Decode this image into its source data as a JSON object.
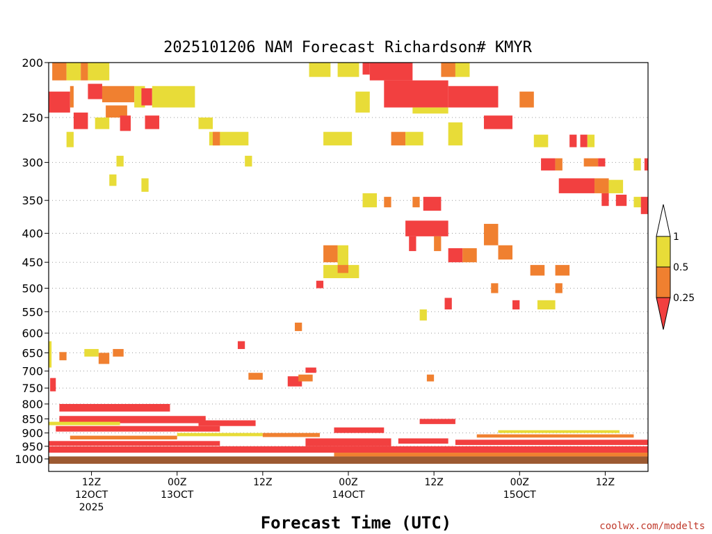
{
  "chart_data": {
    "type": "heatmap",
    "title": "2025101206 NAM Forecast Richardson# KMYR",
    "xlabel": "Forecast Time (UTC)",
    "ylabel": "",
    "credit": "coolwx.com/modelts",
    "y_ticks": [
      "200",
      "250",
      "300",
      "350",
      "400",
      "450",
      "500",
      "550",
      "600",
      "650",
      "700",
      "750",
      "800",
      "850",
      "900",
      "950",
      "1000"
    ],
    "y_values": [
      200,
      250,
      300,
      350,
      400,
      450,
      500,
      550,
      600,
      650,
      700,
      750,
      800,
      850,
      900,
      950,
      1000
    ],
    "ylim": [
      200,
      1020
    ],
    "xlim": [
      0,
      84
    ],
    "x_ticks": [
      {
        "hour": 6,
        "label": "12Z",
        "sub1": "12OCT",
        "sub2": "2025"
      },
      {
        "hour": 18,
        "label": "00Z",
        "sub1": "13OCT",
        "sub2": ""
      },
      {
        "hour": 30,
        "label": "12Z",
        "sub1": "",
        "sub2": ""
      },
      {
        "hour": 42,
        "label": "00Z",
        "sub1": "14OCT",
        "sub2": ""
      },
      {
        "hour": 54,
        "label": "12Z",
        "sub1": "",
        "sub2": ""
      },
      {
        "hour": 66,
        "label": "00Z",
        "sub1": "15OCT",
        "sub2": ""
      },
      {
        "hour": 78,
        "label": "12Z",
        "sub1": "",
        "sub2": ""
      }
    ],
    "legend": {
      "placement": "right",
      "bins": [
        {
          "range": "<0.25",
          "color": "#f24040"
        },
        {
          "range": "0.25-0.5",
          "color": "#f08030"
        },
        {
          "range": "0.5-1",
          "color": "#e8dc38"
        },
        {
          "range": ">1",
          "color": "#ffffff"
        }
      ],
      "labels": [
        "1",
        "0.5",
        "0.25"
      ]
    },
    "categories_color": {
      "low": "#f24040",
      "mid": "#f08030",
      "high": "#e8dc38",
      "ground": "#9c5a32"
    },
    "cells": [
      {
        "t0": 0.5,
        "t1": 2.5,
        "p0": 200,
        "p1": 215,
        "c": "mid"
      },
      {
        "t0": 2.5,
        "t1": 4.5,
        "p0": 200,
        "p1": 215,
        "c": "high"
      },
      {
        "t0": 4.5,
        "t1": 5.5,
        "p0": 200,
        "p1": 215,
        "c": "mid"
      },
      {
        "t0": 5.5,
        "t1": 8.5,
        "p0": 200,
        "p1": 215,
        "c": "high"
      },
      {
        "t0": 0,
        "t1": 3,
        "p0": 225,
        "p1": 245,
        "c": "low"
      },
      {
        "t0": 3,
        "t1": 3.5,
        "p0": 220,
        "p1": 240,
        "c": "mid"
      },
      {
        "t0": 5.5,
        "t1": 7.5,
        "p0": 218,
        "p1": 232,
        "c": "low"
      },
      {
        "t0": 7.5,
        "t1": 12,
        "p0": 220,
        "p1": 235,
        "c": "mid"
      },
      {
        "t0": 12,
        "t1": 13.5,
        "p0": 220,
        "p1": 240,
        "c": "high"
      },
      {
        "t0": 13,
        "t1": 14.5,
        "p0": 222,
        "p1": 238,
        "c": "low"
      },
      {
        "t0": 14.5,
        "t1": 20.5,
        "p0": 220,
        "p1": 240,
        "c": "high"
      },
      {
        "t0": 8,
        "t1": 11,
        "p0": 238,
        "p1": 250,
        "c": "mid"
      },
      {
        "t0": 3.5,
        "t1": 5.5,
        "p0": 245,
        "p1": 262,
        "c": "low"
      },
      {
        "t0": 6.5,
        "t1": 8.5,
        "p0": 250,
        "p1": 262,
        "c": "high"
      },
      {
        "t0": 10,
        "t1": 11.5,
        "p0": 248,
        "p1": 264,
        "c": "low"
      },
      {
        "t0": 13.5,
        "t1": 15.5,
        "p0": 248,
        "p1": 262,
        "c": "low"
      },
      {
        "t0": 21,
        "t1": 23,
        "p0": 250,
        "p1": 262,
        "c": "high"
      },
      {
        "t0": 22.5,
        "t1": 28,
        "p0": 265,
        "p1": 280,
        "c": "high"
      },
      {
        "t0": 23,
        "t1": 24,
        "p0": 265,
        "p1": 280,
        "c": "mid"
      },
      {
        "t0": 2.5,
        "t1": 3.5,
        "p0": 265,
        "p1": 282,
        "c": "high"
      },
      {
        "t0": 9.5,
        "t1": 10.5,
        "p0": 292,
        "p1": 305,
        "c": "high"
      },
      {
        "t0": 27.5,
        "t1": 28.5,
        "p0": 292,
        "p1": 305,
        "c": "high"
      },
      {
        "t0": 8.5,
        "t1": 9.5,
        "p0": 315,
        "p1": 330,
        "c": "high"
      },
      {
        "t0": 13,
        "t1": 14,
        "p0": 320,
        "p1": 338,
        "c": "high"
      },
      {
        "t0": 36.5,
        "t1": 39.5,
        "p0": 200,
        "p1": 212,
        "c": "high"
      },
      {
        "t0": 40.5,
        "t1": 43.5,
        "p0": 200,
        "p1": 212,
        "c": "high"
      },
      {
        "t0": 44,
        "t1": 45,
        "p0": 200,
        "p1": 210,
        "c": "low"
      },
      {
        "t0": 45,
        "t1": 51,
        "p0": 200,
        "p1": 215,
        "c": "low"
      },
      {
        "t0": 47,
        "t1": 56,
        "p0": 215,
        "p1": 240,
        "c": "low"
      },
      {
        "t0": 56,
        "t1": 63,
        "p0": 220,
        "p1": 240,
        "c": "low"
      },
      {
        "t0": 51,
        "t1": 56,
        "p0": 240,
        "p1": 246,
        "c": "high"
      },
      {
        "t0": 55,
        "t1": 57,
        "p0": 200,
        "p1": 212,
        "c": "mid"
      },
      {
        "t0": 57,
        "t1": 59,
        "p0": 200,
        "p1": 212,
        "c": "high"
      },
      {
        "t0": 43,
        "t1": 45,
        "p0": 225,
        "p1": 245,
        "c": "high"
      },
      {
        "t0": 38.5,
        "t1": 42.5,
        "p0": 265,
        "p1": 280,
        "c": "high"
      },
      {
        "t0": 48,
        "t1": 50,
        "p0": 265,
        "p1": 280,
        "c": "mid"
      },
      {
        "t0": 50,
        "t1": 52.5,
        "p0": 265,
        "p1": 280,
        "c": "high"
      },
      {
        "t0": 56,
        "t1": 58,
        "p0": 255,
        "p1": 280,
        "c": "high"
      },
      {
        "t0": 61,
        "t1": 65,
        "p0": 248,
        "p1": 262,
        "c": "low"
      },
      {
        "t0": 66,
        "t1": 68,
        "p0": 225,
        "p1": 240,
        "c": "mid"
      },
      {
        "t0": 68,
        "t1": 70,
        "p0": 268,
        "p1": 282,
        "c": "high"
      },
      {
        "t0": 73,
        "t1": 74,
        "p0": 268,
        "p1": 282,
        "c": "low"
      },
      {
        "t0": 74.5,
        "t1": 75.5,
        "p0": 268,
        "p1": 282,
        "c": "low"
      },
      {
        "t0": 75.5,
        "t1": 76.5,
        "p0": 268,
        "p1": 282,
        "c": "high"
      },
      {
        "t0": 69,
        "t1": 71,
        "p0": 295,
        "p1": 310,
        "c": "low"
      },
      {
        "t0": 71,
        "t1": 72,
        "p0": 295,
        "p1": 310,
        "c": "mid"
      },
      {
        "t0": 75,
        "t1": 77,
        "p0": 295,
        "p1": 305,
        "c": "mid"
      },
      {
        "t0": 77,
        "t1": 78,
        "p0": 295,
        "p1": 305,
        "c": "low"
      },
      {
        "t0": 82,
        "t1": 83,
        "p0": 295,
        "p1": 310,
        "c": "high"
      },
      {
        "t0": 83.5,
        "t1": 84,
        "p0": 295,
        "p1": 310,
        "c": "low"
      },
      {
        "t0": 71.5,
        "t1": 76.5,
        "p0": 320,
        "p1": 340,
        "c": "low"
      },
      {
        "t0": 76.5,
        "t1": 78.5,
        "p0": 320,
        "p1": 340,
        "c": "mid"
      },
      {
        "t0": 78.5,
        "t1": 80.5,
        "p0": 322,
        "p1": 340,
        "c": "high"
      },
      {
        "t0": 77.5,
        "t1": 78.5,
        "p0": 340,
        "p1": 358,
        "c": "low"
      },
      {
        "t0": 79.5,
        "t1": 81,
        "p0": 342,
        "p1": 358,
        "c": "low"
      },
      {
        "t0": 82,
        "t1": 83,
        "p0": 345,
        "p1": 360,
        "c": "high"
      },
      {
        "t0": 83,
        "t1": 84,
        "p0": 345,
        "p1": 370,
        "c": "low"
      },
      {
        "t0": 52.5,
        "t1": 55,
        "p0": 345,
        "p1": 365,
        "c": "low"
      },
      {
        "t0": 51,
        "t1": 52,
        "p0": 345,
        "p1": 360,
        "c": "mid"
      },
      {
        "t0": 47,
        "t1": 48,
        "p0": 345,
        "p1": 360,
        "c": "mid"
      },
      {
        "t0": 44,
        "t1": 46,
        "p0": 340,
        "p1": 360,
        "c": "high"
      },
      {
        "t0": 50,
        "t1": 56,
        "p0": 380,
        "p1": 405,
        "c": "low"
      },
      {
        "t0": 50.5,
        "t1": 51.5,
        "p0": 405,
        "p1": 430,
        "c": "low"
      },
      {
        "t0": 54,
        "t1": 55,
        "p0": 405,
        "p1": 430,
        "c": "mid"
      },
      {
        "t0": 56,
        "t1": 58,
        "p0": 425,
        "p1": 450,
        "c": "low"
      },
      {
        "t0": 58,
        "t1": 60,
        "p0": 425,
        "p1": 450,
        "c": "mid"
      },
      {
        "t0": 61,
        "t1": 63,
        "p0": 385,
        "p1": 420,
        "c": "mid"
      },
      {
        "t0": 63,
        "t1": 65,
        "p0": 420,
        "p1": 445,
        "c": "mid"
      },
      {
        "t0": 38.5,
        "t1": 40.5,
        "p0": 420,
        "p1": 450,
        "c": "mid"
      },
      {
        "t0": 40.5,
        "t1": 42,
        "p0": 420,
        "p1": 455,
        "c": "high"
      },
      {
        "t0": 38.5,
        "t1": 43.5,
        "p0": 455,
        "p1": 480,
        "c": "high"
      },
      {
        "t0": 40.5,
        "t1": 42,
        "p0": 455,
        "p1": 470,
        "c": "mid"
      },
      {
        "t0": 37.5,
        "t1": 38.5,
        "p0": 485,
        "p1": 500,
        "c": "low"
      },
      {
        "t0": 67.5,
        "t1": 69.5,
        "p0": 455,
        "p1": 475,
        "c": "mid"
      },
      {
        "t0": 71,
        "t1": 73,
        "p0": 455,
        "p1": 475,
        "c": "mid"
      },
      {
        "t0": 62,
        "t1": 63,
        "p0": 490,
        "p1": 510,
        "c": "mid"
      },
      {
        "t0": 71,
        "t1": 72,
        "p0": 490,
        "p1": 510,
        "c": "mid"
      },
      {
        "t0": 55.5,
        "t1": 56.5,
        "p0": 520,
        "p1": 545,
        "c": "low"
      },
      {
        "t0": 65,
        "t1": 66,
        "p0": 525,
        "p1": 545,
        "c": "low"
      },
      {
        "t0": 68.5,
        "t1": 71,
        "p0": 525,
        "p1": 545,
        "c": "high"
      },
      {
        "t0": 52,
        "t1": 53,
        "p0": 545,
        "p1": 570,
        "c": "high"
      },
      {
        "t0": 1.5,
        "t1": 2.5,
        "p0": 648,
        "p1": 670,
        "c": "mid"
      },
      {
        "t0": 5,
        "t1": 7,
        "p0": 640,
        "p1": 660,
        "c": "high"
      },
      {
        "t0": 7,
        "t1": 8.5,
        "p0": 650,
        "p1": 680,
        "c": "mid"
      },
      {
        "t0": 9,
        "t1": 10.5,
        "p0": 640,
        "p1": 660,
        "c": "mid"
      },
      {
        "t0": 26.5,
        "t1": 27.5,
        "p0": 620,
        "p1": 640,
        "c": "low"
      },
      {
        "t0": 36,
        "t1": 37.5,
        "p0": 690,
        "p1": 705,
        "c": "low"
      },
      {
        "t0": 33.5,
        "t1": 35.5,
        "p0": 715,
        "p1": 745,
        "c": "low"
      },
      {
        "t0": 28,
        "t1": 30,
        "p0": 705,
        "p1": 725,
        "c": "mid"
      },
      {
        "t0": 35,
        "t1": 37,
        "p0": 710,
        "p1": 730,
        "c": "mid"
      },
      {
        "t0": 34.5,
        "t1": 35.5,
        "p0": 575,
        "p1": 595,
        "c": "mid"
      },
      {
        "t0": 53,
        "t1": 54,
        "p0": 710,
        "p1": 730,
        "c": "mid"
      },
      {
        "t0": 0,
        "t1": 84,
        "p0": 990,
        "p1": 1020,
        "c": "ground"
      }
    ],
    "layers": [
      {
        "p": 950,
        "dp": 25,
        "c": "low",
        "tA": 0,
        "tB": 84,
        "slope": 0
      },
      {
        "p": 930,
        "dp": 18,
        "c": "low",
        "tA": 0,
        "tB": 24,
        "slope": 0
      },
      {
        "p": 910,
        "dp": 14,
        "c": "mid",
        "tA": 3,
        "tB": 18,
        "slope": 0
      },
      {
        "p": 875,
        "dp": 20,
        "c": "low",
        "tA": 1,
        "tB": 24,
        "slope": 0
      },
      {
        "p": 840,
        "dp": 25,
        "c": "low",
        "tA": 1.5,
        "tB": 22,
        "slope": 0
      },
      {
        "p": 800,
        "dp": 25,
        "c": "low",
        "tA": 1.5,
        "tB": 17,
        "slope": 0
      },
      {
        "p": 860,
        "dp": 12,
        "c": "high",
        "tA": 0,
        "tB": 10,
        "slope": 0
      },
      {
        "p": 900,
        "dp": 12,
        "c": "high",
        "tA": 18,
        "tB": 30,
        "slope": 0
      },
      {
        "p": 855,
        "dp": 20,
        "c": "low",
        "tA": 21,
        "tB": 29,
        "slope": 0
      },
      {
        "p": 920,
        "dp": 30,
        "c": "low",
        "tA": 36,
        "tB": 48,
        "slope": 0
      },
      {
        "p": 880,
        "dp": 20,
        "c": "low",
        "tA": 40,
        "tB": 47,
        "slope": 0
      },
      {
        "p": 900,
        "dp": 15,
        "c": "mid",
        "tA": 30,
        "tB": 38,
        "slope": 0
      },
      {
        "p": 850,
        "dp": 18,
        "c": "low",
        "tA": 52,
        "tB": 57,
        "slope": 0
      },
      {
        "p": 920,
        "dp": 20,
        "c": "low",
        "tA": 49,
        "tB": 56,
        "slope": 0
      },
      {
        "p": 925,
        "dp": 20,
        "c": "low",
        "tA": 57,
        "tB": 84,
        "slope": 0
      },
      {
        "p": 905,
        "dp": 12,
        "c": "mid",
        "tA": 60,
        "tB": 82,
        "slope": 0
      },
      {
        "p": 890,
        "dp": 10,
        "c": "high",
        "tA": 63,
        "tB": 80,
        "slope": 0
      },
      {
        "p": 975,
        "dp": 15,
        "c": "mid",
        "tA": 40,
        "tB": 84,
        "slope": 0
      },
      {
        "p": 620,
        "dp": 70,
        "c": "high",
        "tA": 0,
        "tB": 0.4,
        "slope": 0
      },
      {
        "p": 720,
        "dp": 40,
        "c": "low",
        "tA": 0.2,
        "tB": 1,
        "slope": 0
      }
    ]
  }
}
